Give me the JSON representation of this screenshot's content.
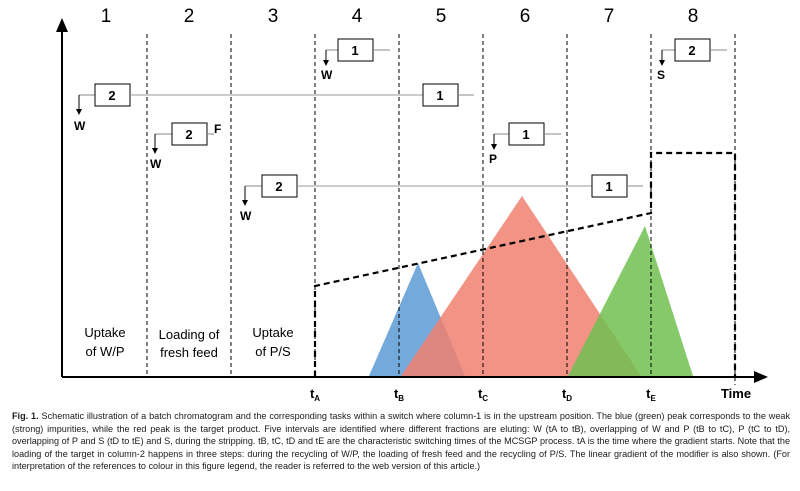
{
  "intervals": [
    "1",
    "2",
    "3",
    "4",
    "5",
    "6",
    "7",
    "8"
  ],
  "tasks": [
    {
      "line1": "Uptake",
      "line2": "of W/P"
    },
    {
      "line1": "Loading of",
      "line2": "fresh feed"
    },
    {
      "line1": "Uptake",
      "line2": "of P/S"
    }
  ],
  "switch_times": [
    {
      "base": "t",
      "sub": "A"
    },
    {
      "base": "t",
      "sub": "B"
    },
    {
      "base": "t",
      "sub": "C"
    },
    {
      "base": "t",
      "sub": "D"
    },
    {
      "base": "t",
      "sub": "E"
    }
  ],
  "time_label": "Time",
  "boxes": {
    "row_w1": {
      "left": "2",
      "right": "1",
      "tag": "W"
    },
    "row_f": {
      "left": "2",
      "extra": "F",
      "tag": "W"
    },
    "row_w2": {
      "left": "2",
      "right": "1",
      "tag": "W"
    },
    "box_i4": {
      "label": "1",
      "tag": "W"
    },
    "box_i6": {
      "label": "1",
      "tag": "P"
    },
    "box_i8": {
      "label": "2",
      "tag": "S"
    }
  },
  "colors": {
    "weak_peak": "#5b9bd5",
    "product_peak": "#f08070",
    "strong_peak": "#70c050",
    "axis": "#000000"
  },
  "caption": {
    "fig_label": "Fig. 1.",
    "text": "Schematic illustration of a batch chromatogram and the corresponding tasks within a switch where column-1 is in the upstream position. The blue (green) peak corresponds to the weak (strong) impurities, while the red peak is the target product. Five intervals are identified where different fractions are eluting: W (tA to tB), overlapping of W and P (tB to tC), P (tC to tD), overlapping of P and S (tD to tE) and S, during the stripping. tB, tC, tD and tE are the characteristic switching times of the MCSGP process. tA is the time where the gradient starts. Note that the loading of the target in column-2 happens in three steps: during the recycling of W/P, the loading of fresh feed and the recycling of P/S. The linear gradient of the modifier is also shown. (For interpretation of the references to colour in this figure legend, the reader is referred to the web version of this article.)"
  }
}
